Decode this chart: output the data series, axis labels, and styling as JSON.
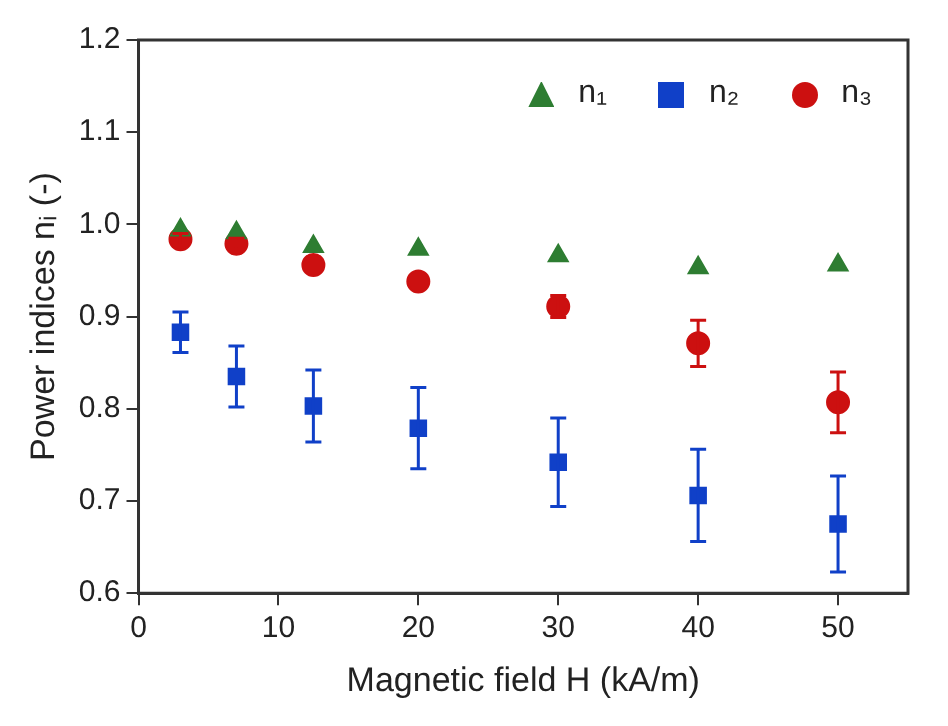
{
  "chart_data": {
    "type": "scatter",
    "xlabel": "Magnetic field H (kA/m)",
    "ylabel": "Power indices nᵢ (-)",
    "x": [
      3,
      7,
      12.5,
      20,
      30,
      40,
      50
    ],
    "series": [
      {
        "name": "n₁",
        "color": "#2e7d32",
        "marker": "triangle",
        "values": [
          0.994,
          0.991,
          0.976,
          0.973,
          0.966,
          0.953,
          0.956
        ]
      },
      {
        "name": "n₂",
        "color": "#1040c8",
        "marker": "square",
        "values": [
          0.883,
          0.835,
          0.803,
          0.779,
          0.742,
          0.706,
          0.675
        ],
        "errors": [
          0.022,
          0.033,
          0.039,
          0.044,
          0.048,
          0.05,
          0.052
        ]
      },
      {
        "name": "n₃",
        "color": "#cc1010",
        "marker": "circle",
        "values": [
          0.984,
          0.979,
          0.956,
          0.938,
          0.911,
          0.871,
          0.807
        ],
        "errors": [
          0.006,
          0.006,
          null,
          null,
          0.012,
          0.025,
          0.033
        ]
      }
    ],
    "xlim": [
      0,
      55
    ],
    "xticks": [
      0,
      10,
      20,
      30,
      40,
      50
    ],
    "ylim": [
      0.6,
      1.2
    ],
    "yticks": [
      0.6,
      0.7,
      0.8,
      0.9,
      {
        "value": 1,
        "label": "1.0"
      },
      1.1,
      1.2
    ],
    "grid": false,
    "legend": "top right"
  }
}
